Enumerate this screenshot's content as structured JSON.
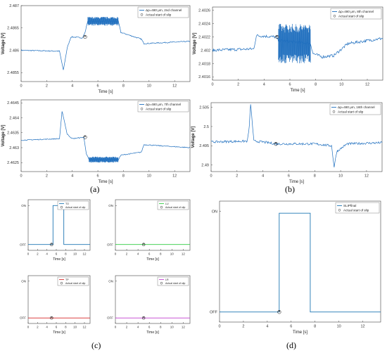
{
  "panel_labels": [
    "(a)",
    "(b)",
    "(c)",
    "(d)"
  ],
  "colors": {
    "signal": "#1f6fbf",
    "marker": "#000000",
    "TO": "#1f77b4",
    "LU": "#2ecc40",
    "TP": "#d62728",
    "LR": "#c03ccf"
  },
  "chart_data": [
    {
      "type": "line",
      "panel": "a-top",
      "xlabel": "Time [s]",
      "ylabel": "Voltage [V]",
      "xlim": [
        0,
        13.2
      ],
      "ylim": [
        2.4853,
        2.487
      ],
      "xticks": [
        0,
        2,
        4,
        6,
        8,
        10,
        12
      ],
      "yticks": [
        2.4855,
        2.486,
        2.4865,
        2.487
      ],
      "ytick_labels": [
        "2.4855",
        "2.486",
        "2.4865",
        "2.487"
      ],
      "legend": [
        "Δp=480 μm, 2nd channel",
        "Actual start of slip"
      ],
      "series": [
        {
          "name": "Δp=480 μm, 2nd channel",
          "x": [
            0,
            3,
            3.2,
            3.3,
            3.6,
            3.9,
            4.8,
            5.0,
            5.2,
            7.6,
            7.8,
            9.4,
            9.6,
            13.2
          ],
          "y": [
            2.486,
            2.48598,
            2.4857,
            2.48555,
            2.48605,
            2.4863,
            2.48628,
            2.4864,
            2.48665,
            2.48665,
            2.4864,
            2.48625,
            2.48615,
            2.4862
          ]
        }
      ],
      "noisy_band": {
        "x": [
          5.2,
          7.6
        ],
        "center": 2.48665,
        "halfwidth": 0.0001
      },
      "noise_amp": 1.2e-05,
      "slip_marker": {
        "x": 5.0,
        "y": 2.4863
      }
    },
    {
      "type": "line",
      "panel": "b-top",
      "xlabel": "Time [s]",
      "ylabel": "Voltage [V]",
      "xlim": [
        0,
        13.2
      ],
      "ylim": [
        2.40155,
        2.40265
      ],
      "xticks": [
        0,
        2,
        4,
        6,
        8,
        10,
        12
      ],
      "yticks": [
        2.4016,
        2.4018,
        2.402,
        2.4022,
        2.4024,
        2.4026
      ],
      "ytick_labels": [
        "2.4016",
        "2.4018",
        "2.402",
        "2.4022",
        "2.4024",
        "2.4026"
      ],
      "legend": [
        "Δp=480 μm, 8th channel",
        "Actual start of slip"
      ],
      "series": [
        {
          "name": "Δp=480 μm, 8th channel",
          "x": [
            0,
            3.2,
            3.4,
            4.9,
            5.1,
            7.6,
            7.8,
            8.5,
            9.4,
            10.5,
            13.2
          ],
          "y": [
            2.402,
            2.40202,
            2.40222,
            2.4022,
            2.40215,
            2.4021,
            2.40195,
            2.4019,
            2.40192,
            2.4021,
            2.40218
          ]
        }
      ],
      "noisy_band": {
        "x": [
          5.1,
          7.6
        ],
        "center": 2.4021,
        "halfwidth": 0.0003
      },
      "noise_amp": 2.2e-05,
      "slip_marker": {
        "x": 5.0,
        "y": 2.4022
      }
    },
    {
      "type": "line",
      "panel": "a-bottom",
      "xlabel": "Time [s]",
      "ylabel": "Voltage [V]",
      "xlim": [
        0,
        13.2
      ],
      "ylim": [
        2.4622,
        2.4646
      ],
      "xticks": [
        0,
        2,
        4,
        6,
        8,
        10,
        12
      ],
      "yticks": [
        2.4625,
        2.463,
        2.4635,
        2.464,
        2.4645
      ],
      "ytick_labels": [
        "2.4625",
        "2.463",
        "2.4635",
        "2.464",
        "2.4645"
      ],
      "legend": [
        "Δp=480 μm, 7th channel",
        "Actual start of slip"
      ],
      "series": [
        {
          "name": "Δp=480 μm, 7th channel",
          "x": [
            0,
            3.0,
            3.2,
            3.3,
            3.6,
            4.0,
            4.9,
            5.1,
            5.3,
            7.6,
            7.8,
            9.4,
            9.6,
            13.2
          ],
          "y": [
            2.46325,
            2.4633,
            2.4642,
            2.46405,
            2.46345,
            2.4633,
            2.46335,
            2.4628,
            2.4626,
            2.4626,
            2.46275,
            2.46285,
            2.4631,
            2.463
          ]
        }
      ],
      "noisy_band": {
        "x": [
          5.3,
          7.6
        ],
        "center": 2.4626,
        "halfwidth": 0.0001
      },
      "noise_amp": 1.5e-05,
      "slip_marker": {
        "x": 5.0,
        "y": 2.46335
      }
    },
    {
      "type": "line",
      "panel": "b-bottom",
      "xlabel": "Time [s]",
      "ylabel": "Voltage [V]",
      "xlim": [
        0,
        13.2
      ],
      "ylim": [
        2.4883,
        2.5062
      ],
      "xticks": [
        0,
        2,
        4,
        6,
        8,
        10,
        12
      ],
      "yticks": [
        2.49,
        2.495,
        2.5,
        2.505
      ],
      "ytick_labels": [
        "2.49",
        "2.495",
        "2.5",
        "2.505"
      ],
      "legend": [
        "Δp=480 μm, 16th channel",
        "Actual start of slip"
      ],
      "series": [
        {
          "name": "Δp=480 μm, 16th channel",
          "x": [
            0,
            2.8,
            2.95,
            3.05,
            3.3,
            4.0,
            5.0,
            8.0,
            9.3,
            9.5,
            9.7,
            10.5,
            13.2
          ],
          "y": [
            2.496,
            2.4962,
            2.5,
            2.506,
            2.4962,
            2.496,
            2.4955,
            2.4955,
            2.495,
            2.4895,
            2.4935,
            2.4955,
            2.4958
          ]
        }
      ],
      "noisy_band": null,
      "noise_amp": 0.0003,
      "slip_marker": {
        "x": 5.0,
        "y": 2.4955
      }
    },
    {
      "type": "line",
      "panel": "c-TO",
      "xlabel": "Time [s]",
      "ylabel": "",
      "xlim": [
        0,
        13.2
      ],
      "ylim": [
        -0.15,
        1.15
      ],
      "xticks": [
        0,
        2,
        4,
        6,
        8,
        10,
        12
      ],
      "yticks": [
        0,
        1
      ],
      "ytick_labels": [
        "OFF",
        "ON"
      ],
      "legend": [
        "TO",
        "Actual start of slip"
      ],
      "series": [
        {
          "name": "TO",
          "color": "#1f77b4",
          "x": [
            0,
            5.0,
            5.3,
            5.3,
            7.6,
            7.6,
            13.2
          ],
          "y": [
            0,
            0,
            0,
            1,
            1,
            0,
            0
          ]
        }
      ],
      "slip_marker": {
        "x": 5.0,
        "y": 0
      }
    },
    {
      "type": "line",
      "panel": "c-LU",
      "xlabel": "Time [s]",
      "ylabel": "",
      "xlim": [
        0,
        13.2
      ],
      "ylim": [
        -0.15,
        1.15
      ],
      "xticks": [
        0,
        2,
        4,
        6,
        8,
        10,
        12
      ],
      "yticks": [
        0,
        1
      ],
      "ytick_labels": [
        "OFF",
        "ON"
      ],
      "legend": [
        "LU",
        "Actual start of slip"
      ],
      "series": [
        {
          "name": "LU",
          "color": "#2ecc40",
          "x": [
            0,
            13.2
          ],
          "y": [
            0,
            0
          ]
        }
      ],
      "slip_marker": {
        "x": 5.0,
        "y": 0
      }
    },
    {
      "type": "line",
      "panel": "c-TP",
      "xlabel": "Time [s]",
      "ylabel": "",
      "xlim": [
        0,
        13.2
      ],
      "ylim": [
        -0.15,
        1.15
      ],
      "xticks": [
        0,
        2,
        4,
        6,
        8,
        10,
        12
      ],
      "yticks": [
        0,
        1
      ],
      "ytick_labels": [
        "OFF",
        "ON"
      ],
      "legend": [
        "TP",
        "Actual start of slip"
      ],
      "series": [
        {
          "name": "TP",
          "color": "#d62728",
          "x": [
            0,
            13.2
          ],
          "y": [
            0,
            0
          ]
        }
      ],
      "slip_marker": {
        "x": 5.0,
        "y": 0
      }
    },
    {
      "type": "line",
      "panel": "c-LR",
      "xlabel": "Time [s]",
      "ylabel": "",
      "xlim": [
        0,
        13.2
      ],
      "ylim": [
        -0.15,
        1.15
      ],
      "xticks": [
        0,
        2,
        4,
        6,
        8,
        10,
        12
      ],
      "yticks": [
        0,
        1
      ],
      "ytick_labels": [
        "OFF",
        "ON"
      ],
      "legend": [
        "LR",
        "Actual start of slip"
      ],
      "series": [
        {
          "name": "LR",
          "color": "#c03ccf",
          "x": [
            0,
            13.2
          ],
          "y": [
            0,
            0
          ]
        }
      ],
      "slip_marker": {
        "x": 5.0,
        "y": 0
      }
    },
    {
      "type": "line",
      "panel": "d",
      "xlabel": "Time [s]",
      "ylabel": "",
      "xlim": [
        0,
        13.5
      ],
      "ylim": [
        -0.1,
        1.1
      ],
      "xticks": [
        0,
        2,
        4,
        6,
        8,
        10,
        12
      ],
      "yticks": [
        0,
        1
      ],
      "ytick_labels": [
        "OFF",
        "ON"
      ],
      "legend": [
        "SLIPfinal",
        "Actual start of slip"
      ],
      "series": [
        {
          "name": "SLIPfinal",
          "color": "#1f77b4",
          "x": [
            0,
            5.0,
            5.0,
            7.6,
            7.6,
            13.5
          ],
          "y": [
            0,
            0,
            0.98,
            0.98,
            0,
            0
          ]
        }
      ],
      "slip_marker": {
        "x": 5.0,
        "y": 0
      }
    }
  ]
}
